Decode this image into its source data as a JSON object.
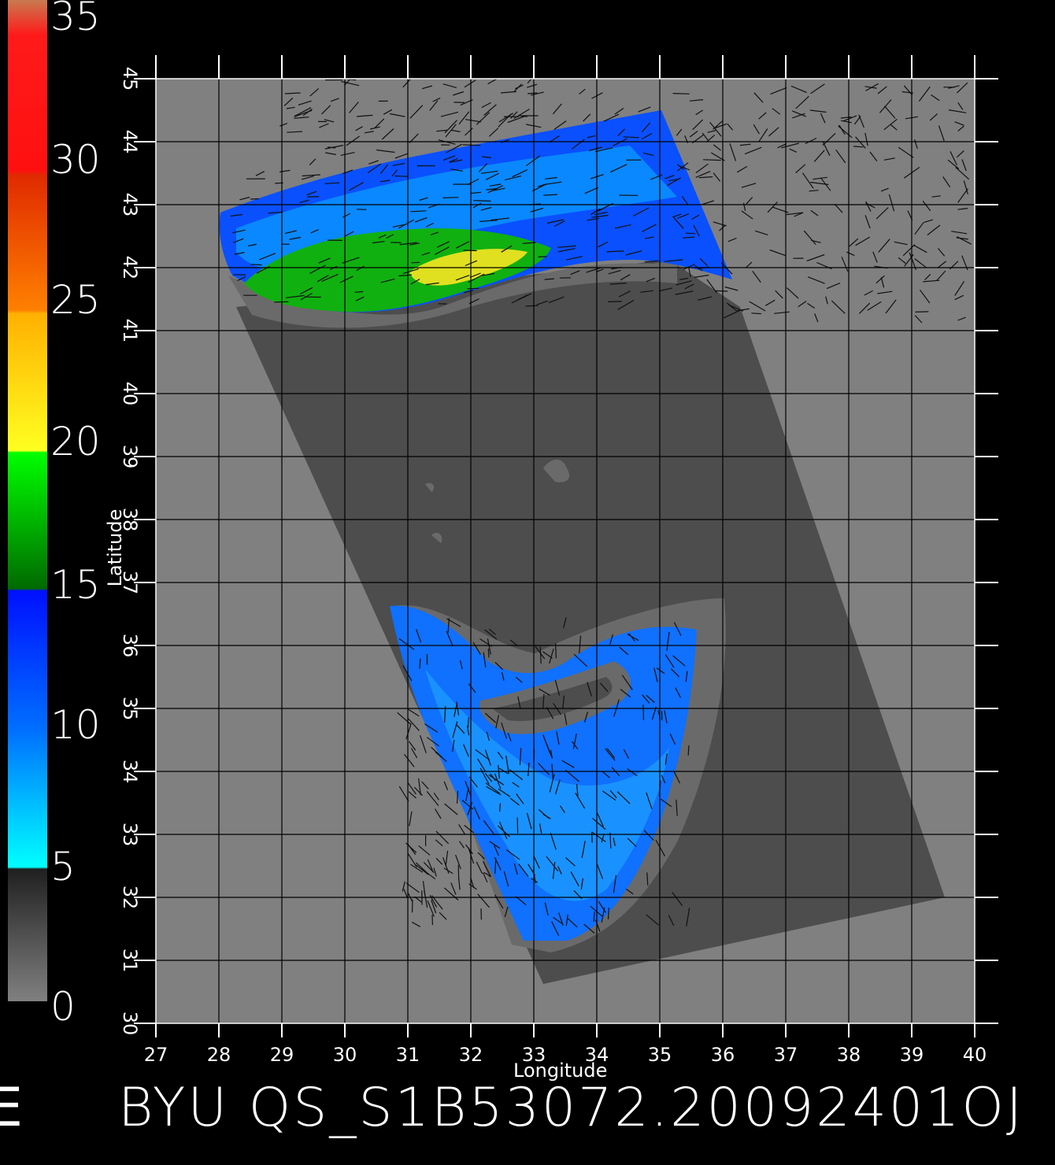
{
  "colorbar": {
    "labels": [
      "35",
      "30",
      "25",
      "20",
      "15",
      "10",
      "5",
      "0"
    ]
  },
  "map": {
    "x_ticks": [
      "27",
      "28",
      "29",
      "30",
      "31",
      "32",
      "33",
      "34",
      "35",
      "36",
      "37",
      "38",
      "39",
      "40"
    ],
    "y_ticks": [
      "30",
      "31",
      "32",
      "33",
      "34",
      "35",
      "36",
      "37",
      "38",
      "39",
      "40",
      "41",
      "42",
      "43",
      "44",
      "45"
    ],
    "xlabel": "Longitude",
    "ylabel": "Latitude",
    "xlim": [
      27,
      40
    ],
    "ylim": [
      30,
      45
    ]
  },
  "footer": {
    "title": "BYU QS_S1B53072.20092401OJ",
    "left_fragment": "E"
  },
  "colors": {
    "land": "#808080",
    "swath_no_data": "#4d4d4d",
    "coast_band": "#6a6a6a"
  }
}
